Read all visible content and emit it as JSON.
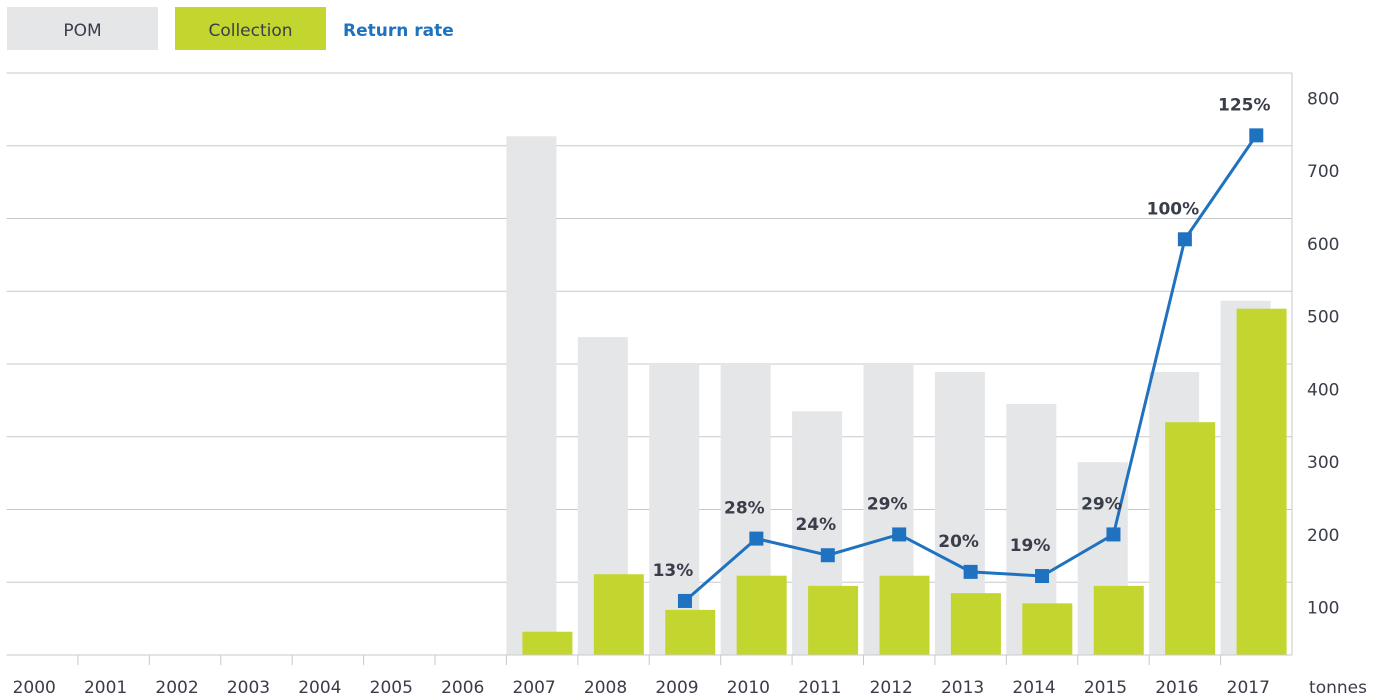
{
  "chart_data": {
    "type": "bar",
    "categories": [
      "2000",
      "2001",
      "2002",
      "2003",
      "2004",
      "2005",
      "2006",
      "2007",
      "2008",
      "2009",
      "2010",
      "2011",
      "2012",
      "2013",
      "2014",
      "2015",
      "2016",
      "2017"
    ],
    "series": [
      {
        "name": "POM",
        "color": "#e5e6e8",
        "values": [
          null,
          null,
          null,
          null,
          null,
          null,
          null,
          713,
          437,
          400,
          400,
          335,
          400,
          389,
          345,
          265,
          389,
          487
        ]
      },
      {
        "name": "Collection",
        "color": "#c3d62f",
        "values": [
          null,
          null,
          null,
          null,
          null,
          null,
          null,
          32,
          111,
          62,
          109,
          95,
          109,
          85,
          71,
          95,
          320,
          476
        ]
      },
      {
        "name": "Return rate",
        "color": "#1f72bf",
        "type": "line",
        "axis": "y2",
        "values": [
          null,
          null,
          null,
          null,
          null,
          null,
          null,
          null,
          null,
          13,
          28,
          24,
          29,
          20,
          19,
          29,
          100,
          125
        ],
        "value_labels": [
          null,
          null,
          null,
          null,
          null,
          null,
          null,
          null,
          null,
          "13%",
          "28%",
          "24%",
          "29%",
          "20%",
          "19%",
          "29%",
          "100%",
          "125%"
        ]
      }
    ],
    "ylabel": "tonnes",
    "ylim": [
      0,
      800
    ],
    "yticks": [
      100,
      200,
      300,
      400,
      500,
      600,
      700,
      800
    ],
    "y2lim": [
      0,
      140
    ],
    "grid": true,
    "legend": "top-left"
  }
}
